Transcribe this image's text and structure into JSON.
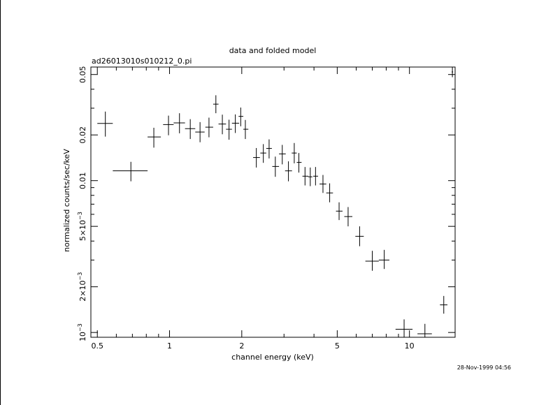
{
  "chart_data": {
    "type": "scatter",
    "title": "data and folded model",
    "subtitle": "ad26013010s010212_0.pi",
    "xlabel": "channel energy (keV)",
    "ylabel": "normalized counts/sec/keV",
    "xscale": "log",
    "yscale": "log",
    "xlim": [
      0.47,
      15.5
    ],
    "ylim": [
      0.00093,
      0.056
    ],
    "xticks": [
      {
        "value": 0.5,
        "label": "0.5"
      },
      {
        "value": 1,
        "label": "1"
      },
      {
        "value": 2,
        "label": "2"
      },
      {
        "value": 5,
        "label": "5"
      },
      {
        "value": 10,
        "label": "10"
      }
    ],
    "yticks": [
      {
        "value": 0.001,
        "label": "10",
        "exp": "−3"
      },
      {
        "value": 0.002,
        "label": "2×10",
        "exp": "−3"
      },
      {
        "value": 0.005,
        "label": "5×10",
        "exp": "−3"
      },
      {
        "value": 0.01,
        "label": "0.01",
        "exp": ""
      },
      {
        "value": 0.02,
        "label": "0.02",
        "exp": ""
      },
      {
        "value": 0.05,
        "label": "0.05",
        "exp": ""
      }
    ],
    "points": [
      {
        "x": 0.54,
        "xlo": 0.5,
        "xhi": 0.58,
        "y": 0.0238,
        "ylo": 0.0195,
        "yhi": 0.0285
      },
      {
        "x": 0.69,
        "xlo": 0.58,
        "xhi": 0.81,
        "y": 0.0116,
        "ylo": 0.0099,
        "yhi": 0.0133
      },
      {
        "x": 0.86,
        "xlo": 0.81,
        "xhi": 0.92,
        "y": 0.0194,
        "ylo": 0.0165,
        "yhi": 0.0223
      },
      {
        "x": 0.99,
        "xlo": 0.94,
        "xhi": 1.04,
        "y": 0.0234,
        "ylo": 0.0199,
        "yhi": 0.0268
      },
      {
        "x": 1.1,
        "xlo": 1.04,
        "xhi": 1.16,
        "y": 0.024,
        "ylo": 0.0205,
        "yhi": 0.0278
      },
      {
        "x": 1.22,
        "xlo": 1.16,
        "xhi": 1.28,
        "y": 0.022,
        "ylo": 0.0188,
        "yhi": 0.0254
      },
      {
        "x": 1.34,
        "xlo": 1.28,
        "xhi": 1.4,
        "y": 0.0209,
        "ylo": 0.0179,
        "yhi": 0.0243
      },
      {
        "x": 1.46,
        "xlo": 1.41,
        "xhi": 1.52,
        "y": 0.0225,
        "ylo": 0.0193,
        "yhi": 0.026
      },
      {
        "x": 1.56,
        "xlo": 1.52,
        "xhi": 1.6,
        "y": 0.0319,
        "ylo": 0.0278,
        "yhi": 0.0365
      },
      {
        "x": 1.66,
        "xlo": 1.6,
        "xhi": 1.72,
        "y": 0.0236,
        "ylo": 0.0202,
        "yhi": 0.0272
      },
      {
        "x": 1.77,
        "xlo": 1.72,
        "xhi": 1.82,
        "y": 0.0218,
        "ylo": 0.0186,
        "yhi": 0.0252
      },
      {
        "x": 1.88,
        "xlo": 1.82,
        "xhi": 1.95,
        "y": 0.0239,
        "ylo": 0.0206,
        "yhi": 0.0273
      },
      {
        "x": 1.98,
        "xlo": 1.94,
        "xhi": 2.03,
        "y": 0.0265,
        "ylo": 0.0228,
        "yhi": 0.0303
      },
      {
        "x": 2.07,
        "xlo": 2.03,
        "xhi": 2.13,
        "y": 0.0218,
        "ylo": 0.0188,
        "yhi": 0.0251
      },
      {
        "x": 2.3,
        "xlo": 2.23,
        "xhi": 2.38,
        "y": 0.0142,
        "ylo": 0.0122,
        "yhi": 0.0164
      },
      {
        "x": 2.46,
        "xlo": 2.39,
        "xhi": 2.53,
        "y": 0.0152,
        "ylo": 0.0131,
        "yhi": 0.0174
      },
      {
        "x": 2.6,
        "xlo": 2.53,
        "xhi": 2.67,
        "y": 0.0163,
        "ylo": 0.014,
        "yhi": 0.0187
      },
      {
        "x": 2.76,
        "xlo": 2.68,
        "xhi": 2.86,
        "y": 0.0124,
        "ylo": 0.0106,
        "yhi": 0.0144
      },
      {
        "x": 2.95,
        "xlo": 2.86,
        "xhi": 3.05,
        "y": 0.015,
        "ylo": 0.0128,
        "yhi": 0.0172
      },
      {
        "x": 3.13,
        "xlo": 3.03,
        "xhi": 3.24,
        "y": 0.0116,
        "ylo": 0.0099,
        "yhi": 0.0134
      },
      {
        "x": 3.31,
        "xlo": 3.23,
        "xhi": 3.39,
        "y": 0.0152,
        "ylo": 0.013,
        "yhi": 0.0177
      },
      {
        "x": 3.46,
        "xlo": 3.39,
        "xhi": 3.55,
        "y": 0.0132,
        "ylo": 0.0113,
        "yhi": 0.0152
      },
      {
        "x": 3.67,
        "xlo": 3.58,
        "xhi": 3.79,
        "y": 0.0107,
        "ylo": 0.0093,
        "yhi": 0.0123
      },
      {
        "x": 3.86,
        "xlo": 3.78,
        "xhi": 3.94,
        "y": 0.0106,
        "ylo": 0.0092,
        "yhi": 0.0122
      },
      {
        "x": 4.06,
        "xlo": 3.97,
        "xhi": 4.16,
        "y": 0.0107,
        "ylo": 0.0093,
        "yhi": 0.0123
      },
      {
        "x": 4.36,
        "xlo": 4.22,
        "xhi": 4.5,
        "y": 0.0095,
        "ylo": 0.0083,
        "yhi": 0.0109
      },
      {
        "x": 4.65,
        "xlo": 4.5,
        "xhi": 4.8,
        "y": 0.0083,
        "ylo": 0.0072,
        "yhi": 0.0096
      },
      {
        "x": 5.09,
        "xlo": 4.94,
        "xhi": 5.26,
        "y": 0.0063,
        "ylo": 0.0055,
        "yhi": 0.0072
      },
      {
        "x": 5.55,
        "xlo": 5.35,
        "xhi": 5.78,
        "y": 0.0058,
        "ylo": 0.005,
        "yhi": 0.0067
      },
      {
        "x": 6.2,
        "xlo": 5.95,
        "xhi": 6.45,
        "y": 0.0043,
        "ylo": 0.0037,
        "yhi": 0.005
      },
      {
        "x": 7.0,
        "xlo": 6.55,
        "xhi": 7.45,
        "y": 0.00295,
        "ylo": 0.00255,
        "yhi": 0.00345
      },
      {
        "x": 7.85,
        "xlo": 7.45,
        "xhi": 8.25,
        "y": 0.003,
        "ylo": 0.00262,
        "yhi": 0.0035
      },
      {
        "x": 9.5,
        "xlo": 8.75,
        "xhi": 10.3,
        "y": 0.00105,
        "ylo": 0.00093,
        "yhi": 0.00122
      },
      {
        "x": 11.6,
        "xlo": 10.8,
        "xhi": 12.4,
        "y": 0.00098,
        "ylo": 0.00093,
        "yhi": 0.00114
      },
      {
        "x": 13.9,
        "xlo": 13.4,
        "xhi": 14.4,
        "y": 0.00152,
        "ylo": 0.00133,
        "yhi": 0.00174
      },
      {
        "x": 15.1,
        "xlo": 15.0,
        "xhi": 15.2,
        "y": 0.052,
        "ylo": 0.048,
        "yhi": 0.056
      }
    ]
  },
  "timestamp": "28-Nov-1999 04:56"
}
